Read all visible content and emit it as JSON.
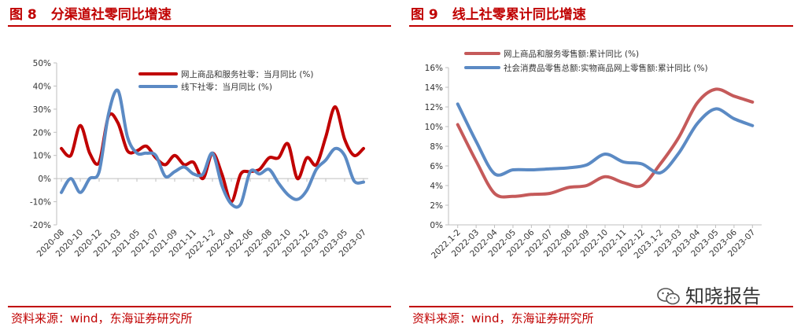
{
  "left_panel": {
    "number": "图 8",
    "title": "分渠道社零同比增速",
    "source": "资料来源：wind，东海证券研究所"
  },
  "right_panel": {
    "number": "图 9",
    "title": "线上社零累计同比增速",
    "source": "资料来源：wind，东海证券研究所"
  },
  "watermark": {
    "text": "知晓报告",
    "icon": "wechat-icon"
  },
  "chart_data": [
    {
      "type": "line",
      "title": "分渠道社零同比增速",
      "xlabel": "",
      "ylabel": "",
      "ylim": [
        -20,
        50
      ],
      "yticks": [
        -20,
        -10,
        0,
        10,
        20,
        30,
        40,
        50
      ],
      "ytick_labels": [
        "-20%",
        "-10%",
        "0%",
        "10%",
        "20%",
        "30%",
        "40%",
        "50%"
      ],
      "x_tick_labels": [
        "2020-08",
        "2020-10",
        "2020-12",
        "2021-03",
        "2021-05",
        "2021-07",
        "2021-09",
        "2021-11",
        "2022-1-2",
        "2022-04",
        "2022-06",
        "2022-08",
        "2022-10",
        "2022-12",
        "2023-03",
        "2023-05",
        "2023-07"
      ],
      "x_tick_index": [
        0,
        2,
        4,
        6,
        8,
        10,
        12,
        14,
        16,
        18,
        20,
        22,
        24,
        26,
        28,
        30,
        32
      ],
      "legend_position": "top-right",
      "series": [
        {
          "name": "网上商品和服务社零：当月同比 (%)",
          "color": "#c00000",
          "values": [
            13,
            10,
            23,
            11,
            7,
            27,
            24,
            12,
            12,
            14,
            9,
            6,
            10,
            6,
            7,
            0,
            11,
            2,
            -10,
            2,
            3,
            4,
            9,
            9,
            15,
            0,
            9,
            6,
            18,
            31,
            17,
            10,
            13
          ]
        },
        {
          "name": "线下社零：当月同比 (%)",
          "color": "#5b8ac4",
          "values": [
            -6,
            0,
            -6,
            0,
            3,
            28,
            38,
            18,
            11,
            11,
            10,
            1,
            3,
            5,
            2,
            2,
            11,
            -3,
            -11,
            -11,
            3,
            2,
            4,
            -2,
            -7,
            -9,
            -5,
            4,
            8,
            13,
            10,
            -1,
            -1.5
          ]
        }
      ]
    },
    {
      "type": "line",
      "title": "线上社零累计同比增速",
      "xlabel": "",
      "ylabel": "",
      "ylim": [
        0,
        16
      ],
      "yticks": [
        0,
        2,
        4,
        6,
        8,
        10,
        12,
        14,
        16
      ],
      "ytick_labels": [
        "0%",
        "2%",
        "4%",
        "6%",
        "8%",
        "10%",
        "12%",
        "14%",
        "16%"
      ],
      "categories": [
        "2022.1-2",
        "2022-03",
        "2022-04",
        "2022-05",
        "2022-06",
        "2022-07",
        "2022-08",
        "2022-09",
        "2022-10",
        "2022-11",
        "2022-12",
        "2023.1-2",
        "2023-03",
        "2023-04",
        "2023-05",
        "2023-06",
        "2023-07"
      ],
      "legend_position": "top",
      "series": [
        {
          "name": "网上商品和服务零售额:累计同比 (%)",
          "color": "#c55a5a",
          "values": [
            10.2,
            6.5,
            3.2,
            2.9,
            3.1,
            3.2,
            3.8,
            4.0,
            4.9,
            4.3,
            4.0,
            6.2,
            8.9,
            12.4,
            13.8,
            13.1,
            12.5
          ]
        },
        {
          "name": "社会消费品零售总额:实物商品网上零售额:累计同比 (%)",
          "color": "#5b8ac4",
          "values": [
            12.3,
            8.5,
            5.2,
            5.6,
            5.6,
            5.7,
            5.8,
            6.1,
            7.2,
            6.4,
            6.2,
            5.3,
            7.3,
            10.3,
            11.8,
            10.8,
            10.1
          ]
        }
      ]
    }
  ]
}
